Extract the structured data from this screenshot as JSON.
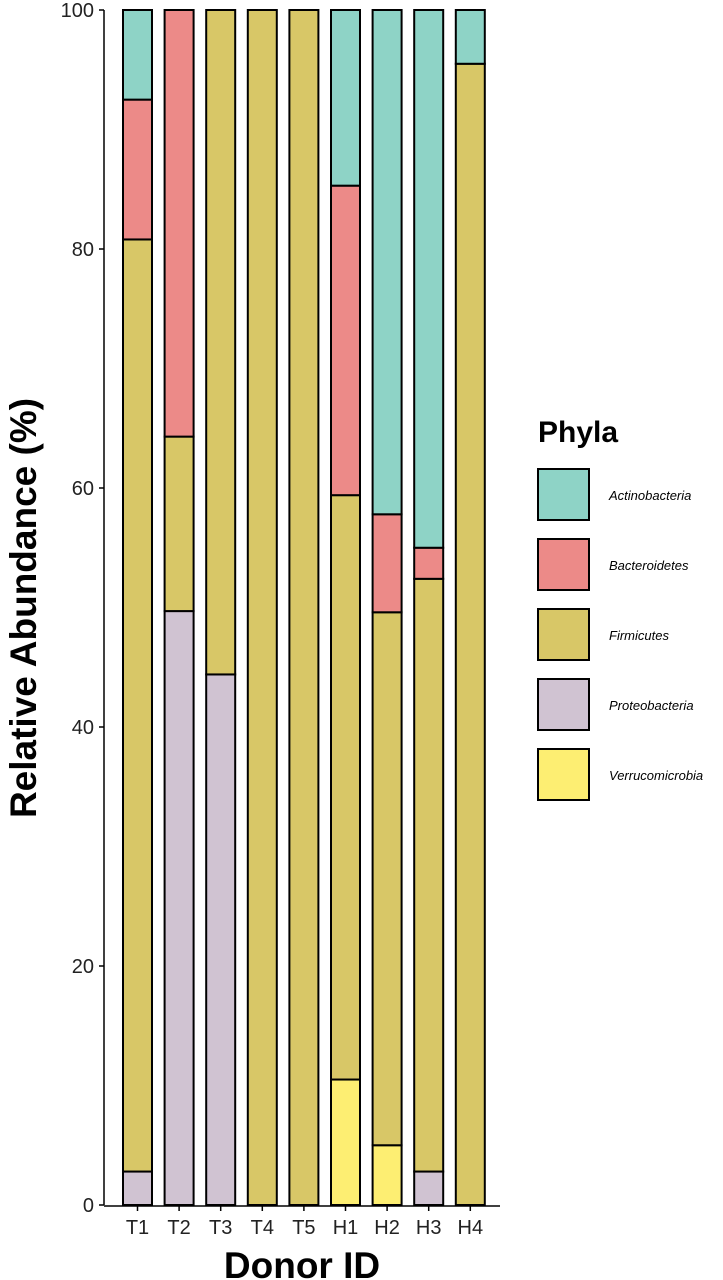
{
  "chart_data": {
    "type": "bar",
    "stacked": true,
    "xlabel": "Donor ID",
    "ylabel": "Relative Abundance (%)",
    "ylim": [
      0,
      100
    ],
    "yticks": [
      "0",
      "20",
      "40",
      "60",
      "80",
      "100"
    ],
    "grid": false,
    "legend_title": "Phyla",
    "legend_position": "right",
    "categories": [
      "T1",
      "T2",
      "T3",
      "T4",
      "T5",
      "H1",
      "H2",
      "H3",
      "H4"
    ],
    "series": [
      {
        "name": "Verrucomicrobia",
        "color": "#FDEE72",
        "values": [
          0,
          0,
          0,
          0,
          0,
          10.5,
          5.0,
          0,
          0
        ]
      },
      {
        "name": "Proteobacteria",
        "color": "#D0C3D2",
        "values": [
          2.8,
          49.7,
          44.4,
          0,
          0,
          0,
          0,
          2.8,
          0
        ]
      },
      {
        "name": "Firmicutes",
        "color": "#D8C767",
        "values": [
          78.0,
          14.6,
          55.6,
          100,
          100,
          48.9,
          44.6,
          49.6,
          95.5
        ]
      },
      {
        "name": "Bacteroidetes",
        "color": "#EC8A88",
        "values": [
          11.7,
          35.7,
          0,
          0,
          0,
          25.9,
          8.2,
          2.6,
          0
        ]
      },
      {
        "name": "Actinobacteria",
        "color": "#8ED3C6",
        "values": [
          7.5,
          0,
          0,
          0,
          0,
          14.7,
          42.2,
          45.0,
          4.5
        ]
      }
    ],
    "legend_order": [
      "Actinobacteria",
      "Bacteroidetes",
      "Firmicutes",
      "Proteobacteria",
      "Verrucomicrobia"
    ]
  }
}
